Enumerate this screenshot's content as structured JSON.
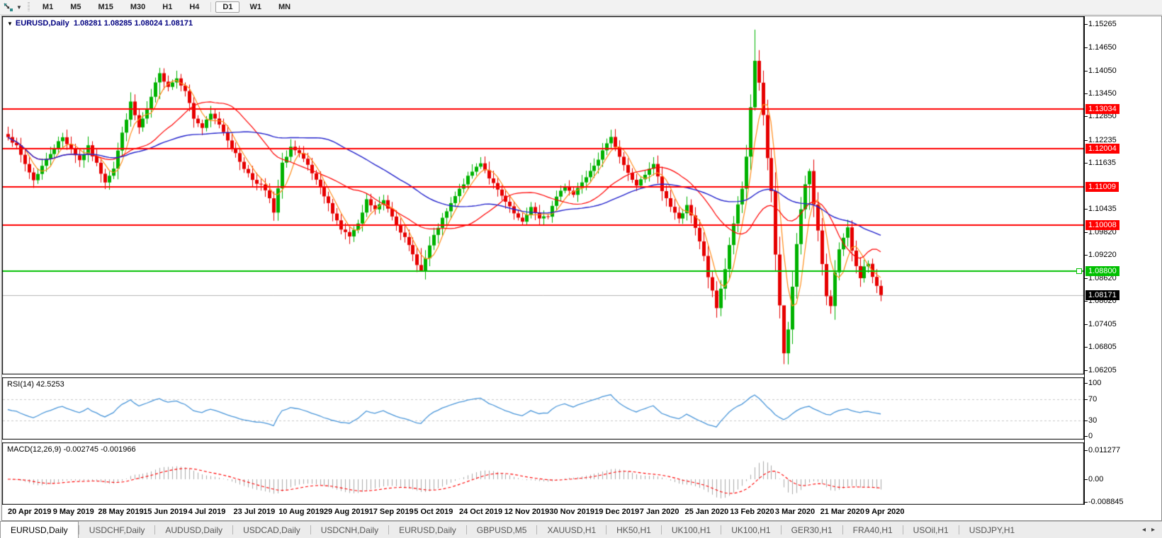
{
  "toolbar": {
    "timeframes": [
      "M1",
      "M5",
      "M15",
      "M30",
      "H1",
      "H4",
      "D1",
      "W1",
      "MN"
    ],
    "active_timeframe": "D1"
  },
  "chart": {
    "title_symbol": "EURUSD,Daily",
    "title_ohlc": "1.08281 1.08285 1.08024 1.08171",
    "dropdown_glyph": "▼",
    "axis_ticks": [
      "1.15265",
      "1.14650",
      "1.14050",
      "1.13450",
      "1.12850",
      "1.12235",
      "1.11635",
      "1.10435",
      "1.09820",
      "1.09220",
      "1.08620",
      "1.08020",
      "1.07405",
      "1.06805",
      "1.06205"
    ],
    "colors": {
      "up_candle": "#00b200",
      "down_candle": "#e60000",
      "ma_fast": "#ff8c1a",
      "ma_mid": "#ff0000",
      "ma_slow": "#2323cc",
      "resistance_line": "#ff0000",
      "support_line": "#00c000",
      "last_price_line": "#b4b4b4",
      "last_price_box": "#000000",
      "rsi_line": "#4a96d9",
      "macd_histogram": "#a9a9a9",
      "macd_signal": "#ff0000"
    }
  },
  "rsi_panel": {
    "label": "RSI(14) 42.5253",
    "levels": [
      {
        "label": "100",
        "value": 100
      },
      {
        "label": "70",
        "value": 70
      },
      {
        "label": "30",
        "value": 30
      },
      {
        "label": "0",
        "value": 0
      }
    ],
    "dashed_levels": [
      70,
      30
    ]
  },
  "macd_panel": {
    "label": "MACD(12,26,9) -0.002745 -0.001966",
    "levels": [
      {
        "label": "0.011277",
        "value": 0.011277
      },
      {
        "label": "0.00",
        "value": 0
      },
      {
        "label": "-0.008845",
        "value": -0.008845
      }
    ]
  },
  "tabs": {
    "items": [
      "EURUSD,Daily",
      "USDCHF,Daily",
      "AUDUSD,Daily",
      "USDCAD,Daily",
      "USDCNH,Daily",
      "EURUSD,Daily",
      "GBPUSD,M5",
      "XAUUSD,H1",
      "HK50,H1",
      "UK100,H1",
      "UK100,H1",
      "GER30,H1",
      "FRA40,H1",
      "USOil,H1",
      "USDJPY,H1"
    ],
    "active_index": 0,
    "scroll_left_glyph": "◂",
    "scroll_right_glyph": "▸"
  },
  "chart_data": {
    "type": "candlestick",
    "symbol": "EURUSD",
    "timeframe": "Daily",
    "title": "EURUSD,Daily 1.08281 1.08285 1.08024 1.08171",
    "last_open": 1.08281,
    "last_high": 1.08285,
    "last_low": 1.08024,
    "last_close": 1.08171,
    "ylim": [
      1.0609,
      1.1547
    ],
    "bars_total": 208,
    "x_axis_dates": [
      "20 Apr 2019",
      "9 May 2019",
      "28 May 2019",
      "15 Jun 2019",
      "4 Jul 2019",
      "23 Jul 2019",
      "10 Aug 2019",
      "29 Aug 2019",
      "17 Sep 2019",
      "5 Oct 2019",
      "24 Oct 2019",
      "12 Nov 2019",
      "30 Nov 2019",
      "19 Dec 2019",
      "7 Jan 2020",
      "25 Jan 2020",
      "13 Feb 2020",
      "3 Mar 2020",
      "21 Mar 2020",
      "9 Apr 2020"
    ],
    "price_anchors": [
      [
        0,
        1.1235
      ],
      [
        2,
        1.1205
      ],
      [
        4,
        1.116
      ],
      [
        6,
        1.1118
      ],
      [
        8,
        1.1155
      ],
      [
        11,
        1.1205
      ],
      [
        13,
        1.123
      ],
      [
        15,
        1.12
      ],
      [
        17,
        1.117
      ],
      [
        19,
        1.1205
      ],
      [
        21,
        1.116
      ],
      [
        23,
        1.1115
      ],
      [
        25,
        1.115
      ],
      [
        27,
        1.124
      ],
      [
        29,
        1.132
      ],
      [
        31,
        1.1255
      ],
      [
        33,
        1.13
      ],
      [
        35,
        1.137
      ],
      [
        36,
        1.1395
      ],
      [
        38,
        1.1365
      ],
      [
        40,
        1.1385
      ],
      [
        42,
        1.1355
      ],
      [
        44,
        1.128
      ],
      [
        46,
        1.1255
      ],
      [
        48,
        1.129
      ],
      [
        50,
        1.1265
      ],
      [
        52,
        1.1225
      ],
      [
        54,
        1.1185
      ],
      [
        56,
        1.115
      ],
      [
        58,
        1.112
      ],
      [
        60,
        1.1105
      ],
      [
        62,
        1.107
      ],
      [
        63,
        1.103
      ],
      [
        65,
        1.116
      ],
      [
        67,
        1.1205
      ],
      [
        69,
        1.1185
      ],
      [
        71,
        1.1155
      ],
      [
        73,
        1.1115
      ],
      [
        75,
        1.1075
      ],
      [
        77,
        1.1035
      ],
      [
        79,
        1.099
      ],
      [
        81,
        1.097
      ],
      [
        83,
        1.1
      ],
      [
        85,
        1.1065
      ],
      [
        87,
        1.104
      ],
      [
        89,
        1.1065
      ],
      [
        91,
        1.1025
      ],
      [
        93,
        1.0985
      ],
      [
        95,
        1.0945
      ],
      [
        97,
        1.09
      ],
      [
        98,
        1.088
      ],
      [
        100,
        1.0945
      ],
      [
        102,
        1.0995
      ],
      [
        104,
        1.1035
      ],
      [
        106,
        1.1075
      ],
      [
        108,
        1.111
      ],
      [
        110,
        1.114
      ],
      [
        112,
        1.1165
      ],
      [
        114,
        1.1125
      ],
      [
        116,
        1.109
      ],
      [
        118,
        1.106
      ],
      [
        120,
        1.103
      ],
      [
        122,
        1.1005
      ],
      [
        124,
        1.105
      ],
      [
        126,
        1.1015
      ],
      [
        128,
        1.1025
      ],
      [
        130,
        1.1075
      ],
      [
        132,
        1.1105
      ],
      [
        134,
        1.108
      ],
      [
        136,
        1.1115
      ],
      [
        138,
        1.1145
      ],
      [
        140,
        1.1175
      ],
      [
        142,
        1.121
      ],
      [
        143,
        1.1235
      ],
      [
        145,
        1.118
      ],
      [
        147,
        1.1135
      ],
      [
        149,
        1.1105
      ],
      [
        151,
        1.113
      ],
      [
        153,
        1.116
      ],
      [
        155,
        1.109
      ],
      [
        157,
        1.105
      ],
      [
        159,
        1.1015
      ],
      [
        161,
        1.1055
      ],
      [
        163,
        1.099
      ],
      [
        165,
        1.092
      ],
      [
        166,
        1.0865
      ],
      [
        168,
        1.0785
      ],
      [
        170,
        1.0885
      ],
      [
        172,
        1.1005
      ],
      [
        174,
        1.1095
      ],
      [
        175,
        1.118
      ],
      [
        176,
        1.131
      ],
      [
        177,
        1.143
      ],
      [
        178,
        1.1375
      ],
      [
        179,
        1.1285
      ],
      [
        180,
        1.1175
      ],
      [
        181,
        1.1085
      ],
      [
        182,
        1.092
      ],
      [
        183,
        1.079
      ],
      [
        184,
        1.0665
      ],
      [
        185,
        1.0725
      ],
      [
        186,
        1.0835
      ],
      [
        187,
        1.095
      ],
      [
        188,
        1.104
      ],
      [
        189,
        1.111
      ],
      [
        190,
        1.114
      ],
      [
        191,
        1.1055
      ],
      [
        192,
        1.0985
      ],
      [
        193,
        1.0895
      ],
      [
        194,
        1.0815
      ],
      [
        195,
        1.079
      ],
      [
        196,
        1.088
      ],
      [
        197,
        1.0935
      ],
      [
        198,
        1.0965
      ],
      [
        199,
        1.099
      ],
      [
        200,
        1.0935
      ],
      [
        201,
        1.0895
      ],
      [
        202,
        1.0865
      ],
      [
        203,
        1.089
      ],
      [
        204,
        1.0895
      ],
      [
        205,
        1.0862
      ],
      [
        206,
        1.0838
      ],
      [
        207,
        1.08171
      ]
    ],
    "bar_extremes": [
      [
        36,
        1.1412,
        1.133
      ],
      [
        98,
        1.094,
        1.0879
      ],
      [
        177,
        1.1512,
        1.13
      ],
      [
        184,
        1.073,
        1.0636
      ],
      [
        190,
        1.1148,
        1.104
      ],
      [
        195,
        1.083,
        1.0768
      ]
    ],
    "overlays": [
      {
        "name": "MA fast",
        "period": 5,
        "color_key": "ma_fast"
      },
      {
        "name": "MA mid",
        "period": 20,
        "color_key": "ma_mid"
      },
      {
        "name": "MA slow",
        "period": 50,
        "color_key": "ma_slow"
      }
    ],
    "horizontal_lines": [
      {
        "price": 1.13034,
        "label": "1.13034",
        "kind": "resistance"
      },
      {
        "price": 1.12004,
        "label": "1.12004",
        "kind": "resistance"
      },
      {
        "price": 1.11009,
        "label": "1.11009",
        "kind": "resistance"
      },
      {
        "price": 1.10008,
        "label": "1.10008",
        "kind": "resistance"
      },
      {
        "price": 1.088,
        "label": "1.08800",
        "kind": "support"
      }
    ],
    "current_price": {
      "price": 1.08171,
      "label": "1.08171"
    },
    "indicators": {
      "rsi": {
        "period": 14,
        "current": 42.5253,
        "range": [
          0,
          100
        ],
        "levels": [
          70,
          30
        ]
      },
      "macd": {
        "fast": 12,
        "slow": 26,
        "signal": 9,
        "current_macd": -0.002745,
        "current_signal": -0.001966,
        "axis_max": 0.011277,
        "axis_min": -0.008845
      }
    }
  }
}
